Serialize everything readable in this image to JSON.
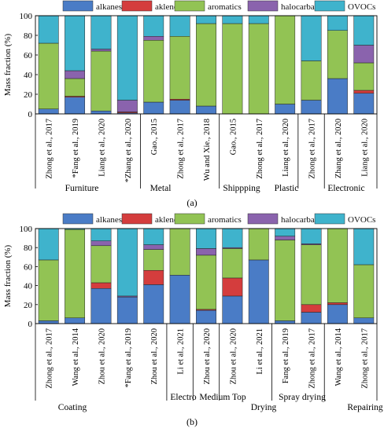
{
  "chart_data": [
    {
      "type": "bar",
      "stacked": true,
      "panel_label": "(a)",
      "ylabel": "Mass fraction (%)",
      "ylim": [
        0,
        100
      ],
      "yticks": [
        0,
        20,
        40,
        60,
        80,
        100
      ],
      "legend": {
        "placement": "top",
        "entries": [
          "alkanes",
          "aklenes",
          "aromatics",
          "halocarbans",
          "OVOCs"
        ]
      },
      "categories": [
        "Zhong et al., 2017",
        "*Fang et al., 2019",
        "Liang et al., 2020",
        "*Zhang et al., 2020",
        "Gao., 2015",
        "Zhong et al., 2017",
        "Wu and Xie., 2018",
        "Gao., 2015",
        "Zhong et al., 2017",
        "Liang et al., 2020",
        "Zhong et al., 2017",
        "Zhang et al., 2020",
        "Liang et al., 2020"
      ],
      "series": [
        {
          "name": "alkanes",
          "color": "#4a7cc6",
          "values": [
            5,
            17,
            3,
            1,
            12,
            14,
            8,
            0,
            0,
            10,
            14,
            36,
            21
          ]
        },
        {
          "name": "aklenes",
          "color": "#d43d3d",
          "values": [
            0,
            1,
            0,
            1,
            0,
            1,
            0,
            0,
            0,
            0,
            0,
            0,
            3
          ]
        },
        {
          "name": "aromatics",
          "color": "#92c354",
          "values": [
            67,
            18,
            61,
            0,
            63,
            64,
            84,
            92,
            92,
            90,
            40,
            49,
            28
          ]
        },
        {
          "name": "halocarbans",
          "color": "#8a63ad",
          "values": [
            0,
            8,
            2,
            12,
            4,
            0,
            0,
            0,
            0,
            0,
            0,
            0,
            18
          ]
        },
        {
          "name": "OVOCs",
          "color": "#3fb3cc",
          "values": [
            28,
            56,
            34,
            86,
            21,
            21,
            8,
            8,
            8,
            0,
            46,
            15,
            30
          ]
        }
      ],
      "groups": [
        {
          "label": "Furniture",
          "start": 0,
          "end": 3
        },
        {
          "label": "Metal",
          "start": 4,
          "end": 6
        },
        {
          "label": "Shippping",
          "start": 7,
          "end": 9
        },
        {
          "label": "Plastic",
          "start": 10,
          "end": 10
        },
        {
          "label": "Electronic",
          "start": 11,
          "end": 12
        }
      ]
    },
    {
      "type": "bar",
      "stacked": true,
      "panel_label": "(b)",
      "ylabel": "Mass fraction (%)",
      "ylim": [
        0,
        100
      ],
      "yticks": [
        0,
        20,
        40,
        60,
        80,
        100
      ],
      "legend": {
        "placement": "top",
        "entries": [
          "alkanes",
          "aklenes",
          "aromatics",
          "halocarbans",
          "OVOCs"
        ]
      },
      "categories": [
        "Zhong et al., 2017",
        "Wang et al., 2014",
        "Zhou et al., 2020",
        "*Fang et al., 2019",
        "Zhou et al., 2020",
        "Li et al., 2021",
        "Zhou et al., 2020",
        "Zhou et al., 2020",
        "Li et al., 2021",
        "Fang et al., 2019",
        "Zhong et al., 2017",
        "Wang et al., 2014",
        "Zhong et al., 2017"
      ],
      "series": [
        {
          "name": "alkanes",
          "color": "#4a7cc6",
          "values": [
            3,
            6,
            37,
            28,
            41,
            51,
            14,
            29,
            67,
            3,
            12,
            20,
            6
          ]
        },
        {
          "name": "aklenes",
          "color": "#d43d3d",
          "values": [
            0,
            0,
            6,
            0,
            15,
            0,
            1,
            19,
            0,
            0,
            8,
            2,
            0
          ]
        },
        {
          "name": "aromatics",
          "color": "#92c354",
          "values": [
            64,
            93,
            39,
            0,
            22,
            49,
            57,
            31,
            33,
            85,
            63,
            78,
            56
          ]
        },
        {
          "name": "halocarbans",
          "color": "#8a63ad",
          "values": [
            0,
            0,
            5,
            1,
            5,
            0,
            7,
            1,
            0,
            4,
            1,
            0,
            0
          ]
        },
        {
          "name": "OVOCs",
          "color": "#3fb3cc",
          "values": [
            33,
            1,
            13,
            71,
            17,
            0,
            21,
            20,
            0,
            8,
            16,
            0,
            38
          ]
        }
      ],
      "groups": [
        {
          "label": "Coating",
          "start": 0,
          "end": 4
        },
        {
          "label": "Electro",
          "start": 5,
          "end": 5
        },
        {
          "label": "Medium Top",
          "start": 6,
          "end": 6
        },
        {
          "label": "Drying",
          "start": 7,
          "end": 8
        },
        {
          "label": "Spray drying",
          "start": 9,
          "end": 10
        },
        {
          "label": "Repairing",
          "start": 11,
          "end": 12
        }
      ]
    }
  ]
}
